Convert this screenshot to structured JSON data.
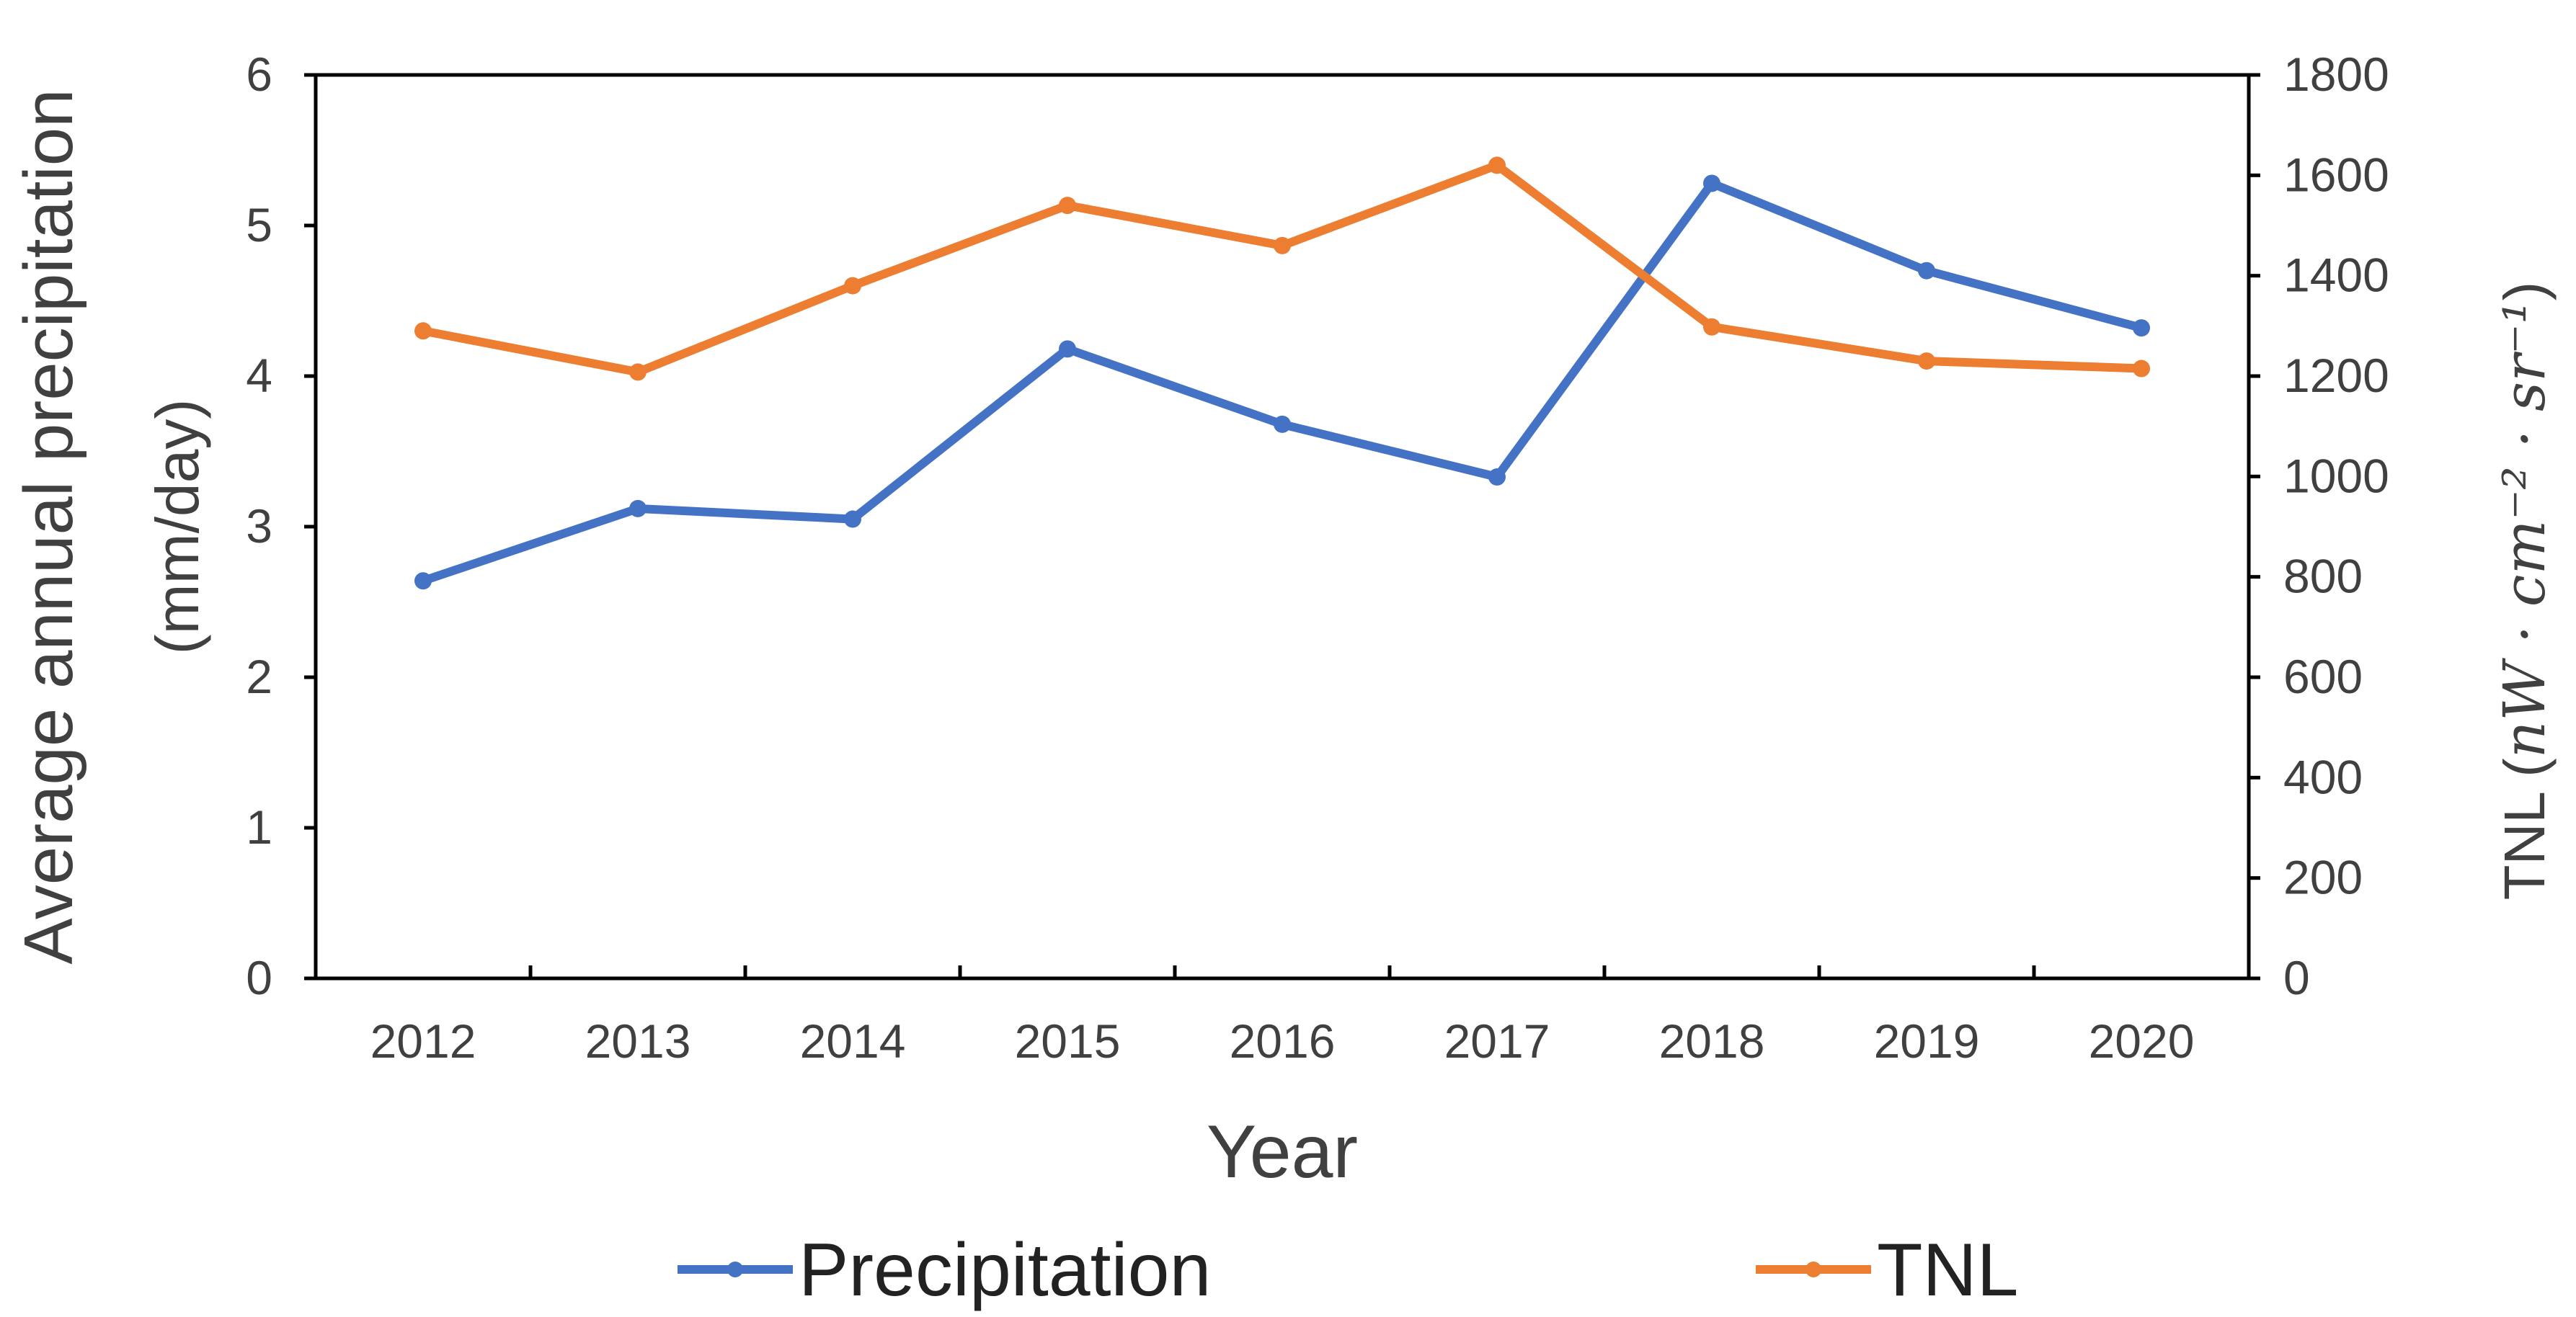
{
  "chart_data": {
    "type": "line",
    "title": "",
    "xlabel": "Year",
    "categories": [
      "2012",
      "2013",
      "2014",
      "2015",
      "2016",
      "2017",
      "2018",
      "2019",
      "2020"
    ],
    "y_left": {
      "label_line1": "Average annual precipitation",
      "label_line2": "(mm/day)",
      "lim": [
        0,
        6
      ],
      "ticks": [
        "0",
        "1",
        "2",
        "3",
        "4",
        "5",
        "6"
      ]
    },
    "y_right": {
      "label_prefix": "TNL (",
      "label_unit": "nW · cm⁻² · sr⁻¹",
      "label_suffix": ")",
      "lim": [
        0,
        1800
      ],
      "ticks": [
        "0",
        "200",
        "400",
        "600",
        "800",
        "1000",
        "1200",
        "1400",
        "1600",
        "1800"
      ]
    },
    "series": [
      {
        "name": "Precipitation",
        "axis": "left",
        "color": "#4472C4",
        "values": [
          2.64,
          3.12,
          3.05,
          4.18,
          3.68,
          3.33,
          5.28,
          4.7,
          4.32
        ]
      },
      {
        "name": "TNL",
        "axis": "right",
        "color": "#ED7D31",
        "values": [
          1290,
          1208,
          1380,
          1540,
          1460,
          1620,
          1298,
          1230,
          1215
        ]
      }
    ],
    "legend_position": "bottom"
  }
}
